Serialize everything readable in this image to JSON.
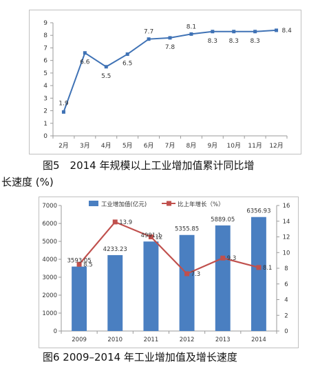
{
  "chart_data": [
    {
      "type": "line",
      "categories": [
        "2月",
        "3月",
        "4月",
        "5月",
        "6月",
        "7月",
        "8月",
        "9月",
        "10月",
        "11月",
        "12月"
      ],
      "series": [
        {
          "values": [
            1.9,
            6.6,
            5.5,
            6.5,
            7.7,
            7.8,
            8.1,
            8.3,
            8.3,
            8.3,
            8.4
          ]
        }
      ],
      "ylim": [
        0,
        9
      ],
      "yticks": [
        0,
        1,
        2,
        3,
        4,
        5,
        6,
        7,
        8,
        9
      ],
      "grid": false,
      "data_labels": true,
      "colors": {
        "line": "#3f72b5",
        "marker": "#3f72b5"
      }
    },
    {
      "type": "bar",
      "categories": [
        "2009",
        "2010",
        "2011",
        "2012",
        "2013",
        "2014"
      ],
      "series": [
        {
          "name": "工业增加值(亿元)",
          "type": "bar",
          "axis": "left",
          "values": [
            3593.05,
            4233.23,
            4991.1,
            5355.85,
            5889.05,
            6356.93
          ],
          "labels": [
            "3593.05",
            "4233.23",
            "4991.1",
            "5355.85",
            "5889.05",
            "6356.93"
          ]
        },
        {
          "name": "比上年增长（%）",
          "type": "line",
          "axis": "right",
          "values": [
            8.5,
            13.9,
            12,
            7.3,
            9.3,
            8.1
          ],
          "labels": [
            "8.5",
            "13.9",
            "12",
            "7.3",
            "9.3",
            "8.1"
          ]
        }
      ],
      "ylim": [
        0,
        7000
      ],
      "yticks": [
        0,
        1000,
        2000,
        3000,
        4000,
        5000,
        6000,
        7000
      ],
      "y2lim": [
        0,
        16
      ],
      "y2ticks": [
        0,
        2,
        4,
        6,
        8,
        10,
        12,
        14,
        16
      ],
      "legend": "top",
      "grid": false,
      "colors": {
        "bar": "#4a7fc1",
        "line": "#c0504d"
      }
    }
  ],
  "captions": {
    "fig5_line1": "图5　2014 年规模以上工业增加值累计同比增",
    "fig5_line2": "长速度 (%)",
    "fig6": "图6  2009–2014 年工业增加值及增长速度"
  }
}
